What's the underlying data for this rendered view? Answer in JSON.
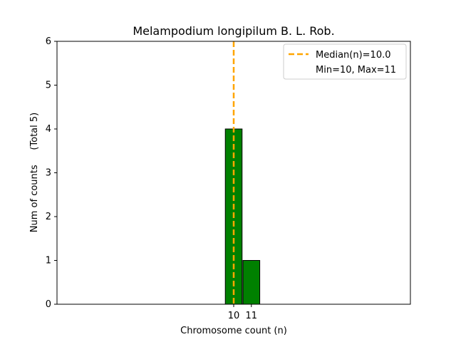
{
  "chart_data": {
    "type": "bar",
    "title": "Melampodium longipilum B. L. Rob.",
    "xlabel": "Chromosome count (n)",
    "ylabel": "Num of counts     (Total 5)",
    "x": [
      10,
      11
    ],
    "values": [
      4,
      1
    ],
    "xticks": [
      "10",
      "11"
    ],
    "yticks": [
      "0",
      "1",
      "2",
      "3",
      "4",
      "5",
      "6"
    ],
    "ylim": [
      0,
      6
    ],
    "xlim": [
      0,
      20
    ],
    "bar_color": "#008000",
    "bar_edge_color": "#000000",
    "median": {
      "value": 10.0,
      "color": "#FFA500",
      "style": "dashed"
    },
    "legend": {
      "placement": "top-right",
      "entries": [
        "Median(n)=10.0",
        "Min=10, Max=11"
      ]
    },
    "grid": false
  }
}
